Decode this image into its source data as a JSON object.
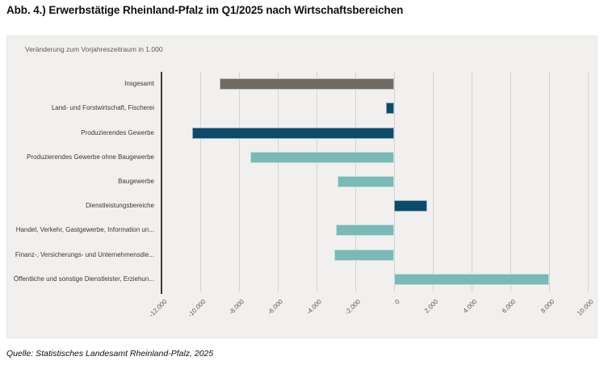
{
  "page": {
    "title": "Abb. 4.) Erwerbstätige Rheinland-Pfalz im Q1/2025 nach Wirtschaftsbereichen",
    "source": "Quelle: Statistisches Landesamt Rheinland-Pfalz, 2025"
  },
  "chart_data": {
    "type": "bar",
    "orientation": "horizontal",
    "title": "Abb. 4.) Erwerbstätige Rheinland-Pfalz im Q1/2025 nach Wirtschaftsbereichen",
    "subtitle": "Veränderung zum Vorjahreszeitraum in 1.000",
    "categories": [
      "Insgesamt",
      "Land- und Forstwirtschaft, Fischerei",
      "Produzierendes Gewerbe",
      "Produzierendes Gewerbe ohne Baugewerbe",
      "Baugewerbe",
      "Dienstleistungsbereiche",
      "Handel, Verkehr, Gastgewerbe, Information un...",
      "Finanz-, Versicherungs- und Unternehmensdie...",
      "Öffentliche und sonstige Dienstleister, Erziehun..."
    ],
    "values": [
      -9000,
      -400,
      -10400,
      -7400,
      -2900,
      1700,
      -3000,
      -3100,
      8000
    ],
    "bar_colors": [
      "#6f6a64",
      "#0d4a6b",
      "#0d4a6b",
      "#79b9b6",
      "#79b9b6",
      "#0d4a6b",
      "#79b9b6",
      "#79b9b6",
      "#79b9b6"
    ],
    "xlim": [
      -12000,
      10000
    ],
    "xticks": [
      -12000,
      -10000,
      -8000,
      -6000,
      -4000,
      -2000,
      0,
      2000,
      4000,
      6000,
      8000,
      10000
    ],
    "xtick_labels": [
      "-12.000",
      "-10.000",
      "-8.000",
      "-6.000",
      "-4.000",
      "-2.000",
      "0",
      "2.000",
      "4.000",
      "6.000",
      "8.000",
      "10.000"
    ],
    "grid": true,
    "legend": "none",
    "colors": {
      "panel_background": "#f1f0ee",
      "gridline": "#d5d4d2",
      "axis_line": "#3a3a3a",
      "gray_bar": "#6f6a64",
      "navy_bar": "#0d4a6b",
      "teal_bar": "#79b9b6"
    }
  }
}
